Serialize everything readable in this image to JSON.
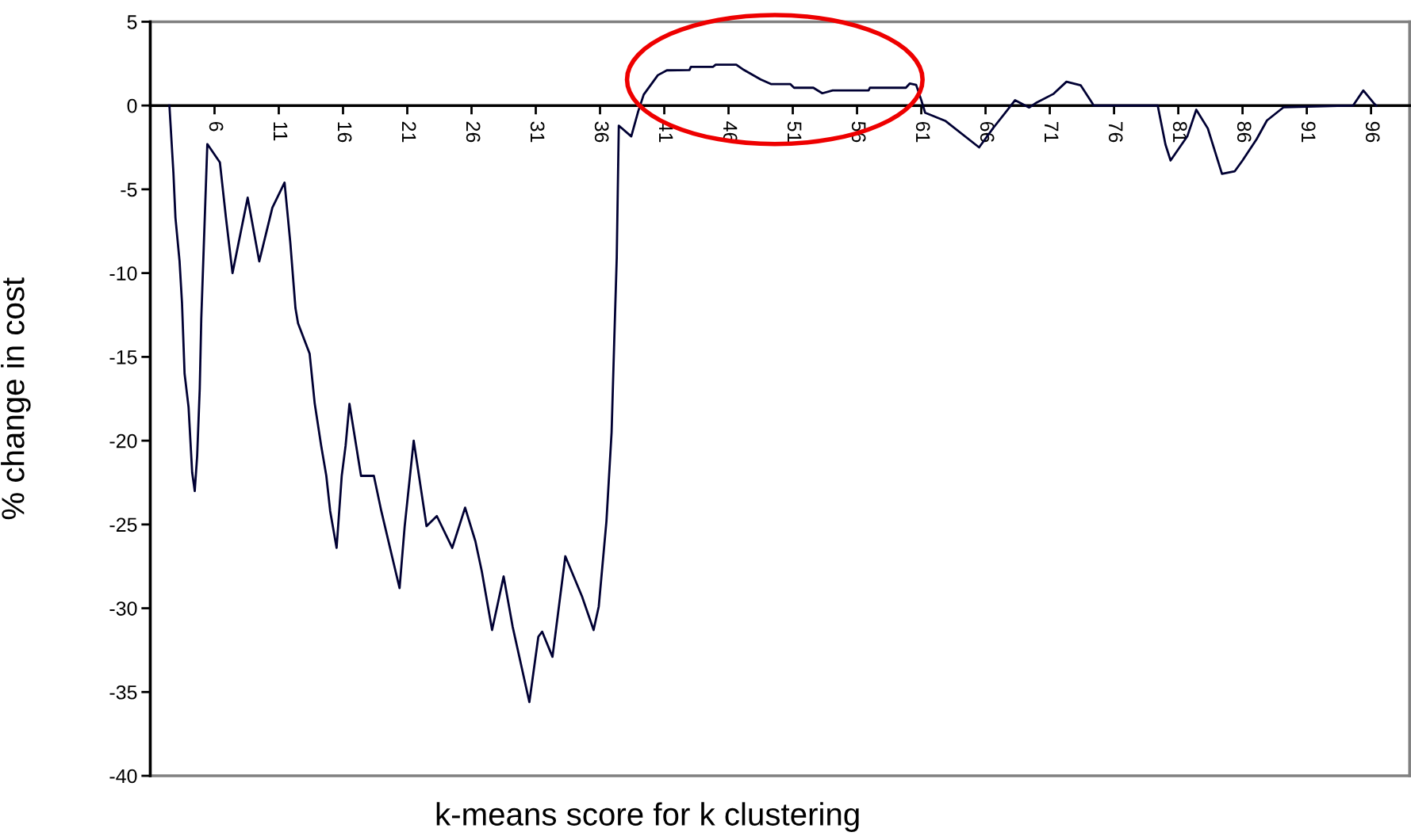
{
  "chart_data": {
    "type": "line",
    "xlabel": "k-means score for k clustering",
    "ylabel": "% change in cost",
    "x": [
      2.49,
      2.8,
      2.96,
      3.28,
      3.47,
      3.67,
      3.98,
      4.26,
      4.46,
      4.65,
      4.85,
      4.97,
      5.16,
      5.44,
      6.42,
      6.89,
      7.4,
      8.58,
      9.48,
      10.5,
      11.45,
      11.9,
      12.3,
      12.5,
      13.4,
      13.8,
      14.3,
      14.7,
      15.0,
      15.5,
      15.9,
      16.2,
      16.5,
      17.4,
      18.4,
      18.98,
      20.4,
      20.8,
      21.5,
      22.5,
      23.3,
      24.5,
      25.5,
      26.3,
      26.8,
      27.6,
      28.5,
      29.2,
      30.5,
      31.2,
      31.5,
      32.3,
      33.3,
      34.6,
      35.5,
      35.9,
      36.5,
      36.9,
      37.1,
      37.3,
      37.46,
      38.43,
      38.97,
      39.4,
      40.5,
      41.2,
      42.96,
      43.07,
      44.8,
      45.0,
      46.6,
      47.2,
      48.5,
      49.3,
      50.8,
      51.1,
      52.6,
      53.3,
      54.1,
      56.9,
      57.0,
      59.8,
      60.1,
      60.6,
      61.0,
      61.3,
      62.9,
      65.5,
      66.6,
      68.3,
      69.4,
      70.0,
      71.3,
      72.3,
      73.4,
      74.3,
      74.4,
      79.4,
      80.0,
      80.4,
      81.7,
      82.4,
      83.3,
      84.4,
      85.4,
      86.0,
      87.1,
      87.9,
      89.2,
      94.6,
      95.4,
      96.2,
      96.4
    ],
    "series": [
      {
        "color": "#000033",
        "values": [
          0,
          -4.0,
          -6.7,
          -9.3,
          -11.8,
          -16.0,
          -18.0,
          -21.9,
          -23.0,
          -20.9,
          -16.9,
          -12.7,
          -8.5,
          -2.3,
          -3.4,
          -6.7,
          -10.0,
          -5.5,
          -9.3,
          -6.1,
          -4.6,
          -8.2,
          -12.1,
          -13.0,
          -14.8,
          -17.8,
          -20.3,
          -22.1,
          -24.2,
          -26.4,
          -22.1,
          -20.3,
          -17.8,
          -22.1,
          -22.1,
          -24.2,
          -28.8,
          -25.1,
          -20.0,
          -25.1,
          -24.5,
          -26.4,
          -24.0,
          -26.0,
          -27.8,
          -31.3,
          -28.1,
          -31.1,
          -35.6,
          -31.7,
          -31.4,
          -32.9,
          -26.9,
          -29.3,
          -31.3,
          -29.9,
          -24.8,
          -19.5,
          -14.2,
          -9.1,
          -1.2,
          -1.84,
          -0.35,
          0.65,
          1.81,
          2.1,
          2.12,
          2.31,
          2.31,
          2.44,
          2.44,
          2.12,
          1.56,
          1.28,
          1.28,
          1.06,
          1.06,
          0.73,
          0.9,
          0.9,
          1.06,
          1.06,
          1.31,
          1.23,
          0.32,
          -0.43,
          -0.93,
          -2.5,
          -1.34,
          0.32,
          -0.12,
          0.19,
          0.7,
          1.42,
          1.21,
          0.15,
          0,
          0,
          -2.32,
          -3.28,
          -1.84,
          -0.25,
          -1.37,
          -4.08,
          -3.92,
          -3.28,
          -2.0,
          -0.89,
          -0.1,
          0,
          0.9,
          0.15,
          0
        ]
      }
    ],
    "xlim": [
      1,
      99
    ],
    "xticks": [
      {
        "value": 1,
        "label": null
      },
      6,
      11,
      16,
      21,
      26,
      31,
      36,
      41,
      46,
      51,
      56,
      61,
      66,
      71,
      76,
      81,
      86,
      91,
      96
    ],
    "ylim": [
      -40,
      5
    ],
    "yticks": [
      -40,
      -35,
      -30,
      -25,
      -20,
      -15,
      -10,
      -5,
      0,
      5
    ],
    "grid": false,
    "legend": false,
    "marker": "none",
    "line_style": "solid"
  }
}
